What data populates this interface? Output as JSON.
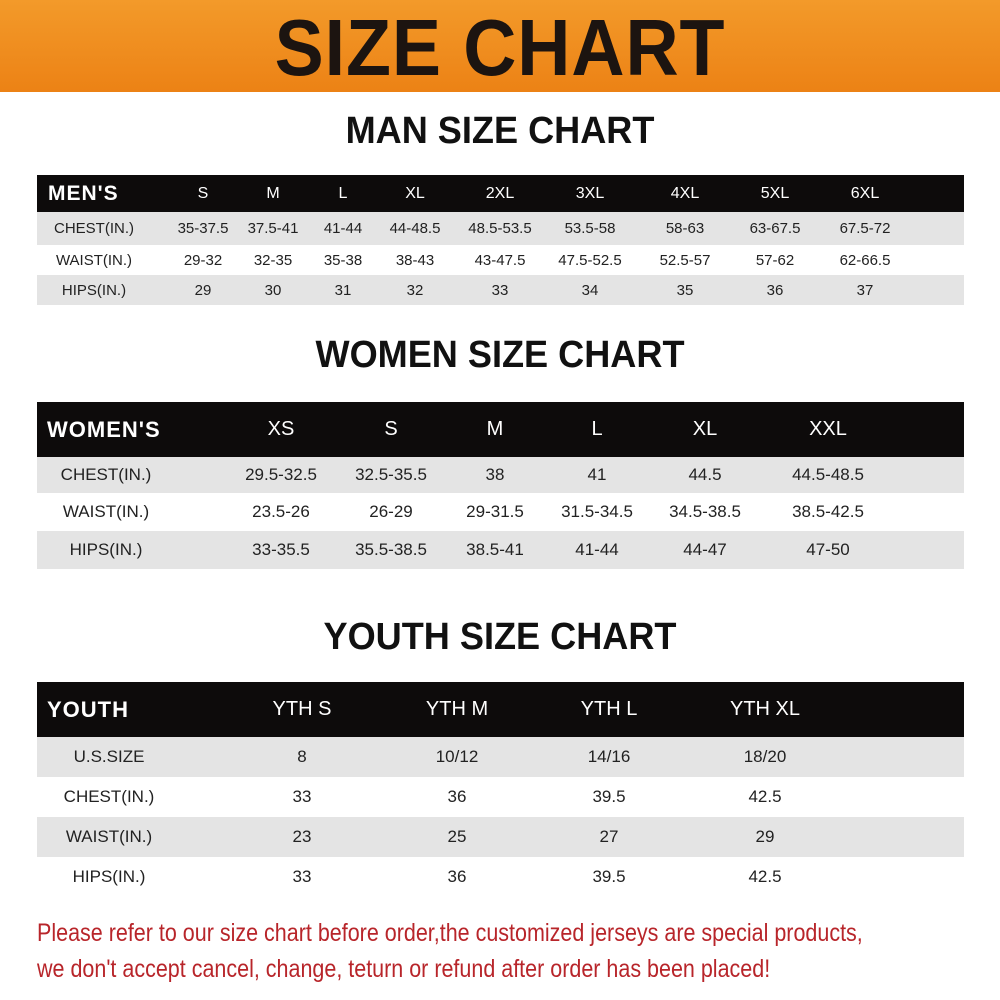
{
  "banner": {
    "title": "SIZE CHART",
    "color": "#ee8a1f"
  },
  "men": {
    "title": "MAN SIZE CHART",
    "header": [
      "MEN'S",
      "S",
      "M",
      "L",
      "XL",
      "2XL",
      "3XL",
      "4XL",
      "5XL",
      "6XL"
    ],
    "rows": [
      [
        "CHEST(IN.)",
        "35-37.5",
        "37.5-41",
        "41-44",
        "44-48.5",
        "48.5-53.5",
        "53.5-58",
        "58-63",
        "63-67.5",
        "67.5-72"
      ],
      [
        "WAIST(IN.)",
        "29-32",
        "32-35",
        "35-38",
        "38-43",
        "43-47.5",
        "47.5-52.5",
        "52.5-57",
        "57-62",
        "62-66.5"
      ],
      [
        "HIPS(IN.)",
        "29",
        "30",
        "31",
        "32",
        "33",
        "34",
        "35",
        "36",
        "37"
      ]
    ]
  },
  "women": {
    "title": "WOMEN SIZE CHART",
    "header": [
      "WOMEN'S",
      "XS",
      "S",
      "M",
      "L",
      "XL",
      "XXL"
    ],
    "rows": [
      [
        "CHEST(IN.)",
        "29.5-32.5",
        "32.5-35.5",
        "38",
        "41",
        "44.5",
        "44.5-48.5"
      ],
      [
        "WAIST(IN.)",
        "23.5-26",
        "26-29",
        "29-31.5",
        "31.5-34.5",
        "34.5-38.5",
        "38.5-42.5"
      ],
      [
        "HIPS(IN.)",
        "33-35.5",
        "35.5-38.5",
        "38.5-41",
        "41-44",
        "44-47",
        "47-50"
      ]
    ]
  },
  "youth": {
    "title": "YOUTH SIZE CHART",
    "header": [
      "YOUTH",
      "YTH S",
      "YTH M",
      "YTH L",
      "YTH XL"
    ],
    "rows": [
      [
        "U.S.SIZE",
        "8",
        "10/12",
        "14/16",
        "18/20"
      ],
      [
        "CHEST(IN.)",
        "33",
        "36",
        "39.5",
        "42.5"
      ],
      [
        "WAIST(IN.)",
        "23",
        "25",
        "27",
        "29"
      ],
      [
        "HIPS(IN.)",
        "33",
        "36",
        "39.5",
        "42.5"
      ]
    ]
  },
  "notice": {
    "line1": "Please refer to our size chart before order,the customized jerseys are special products,",
    "line2": "we don't accept cancel, change, teturn or refund after order has been placed!",
    "color": "#b8252a"
  }
}
